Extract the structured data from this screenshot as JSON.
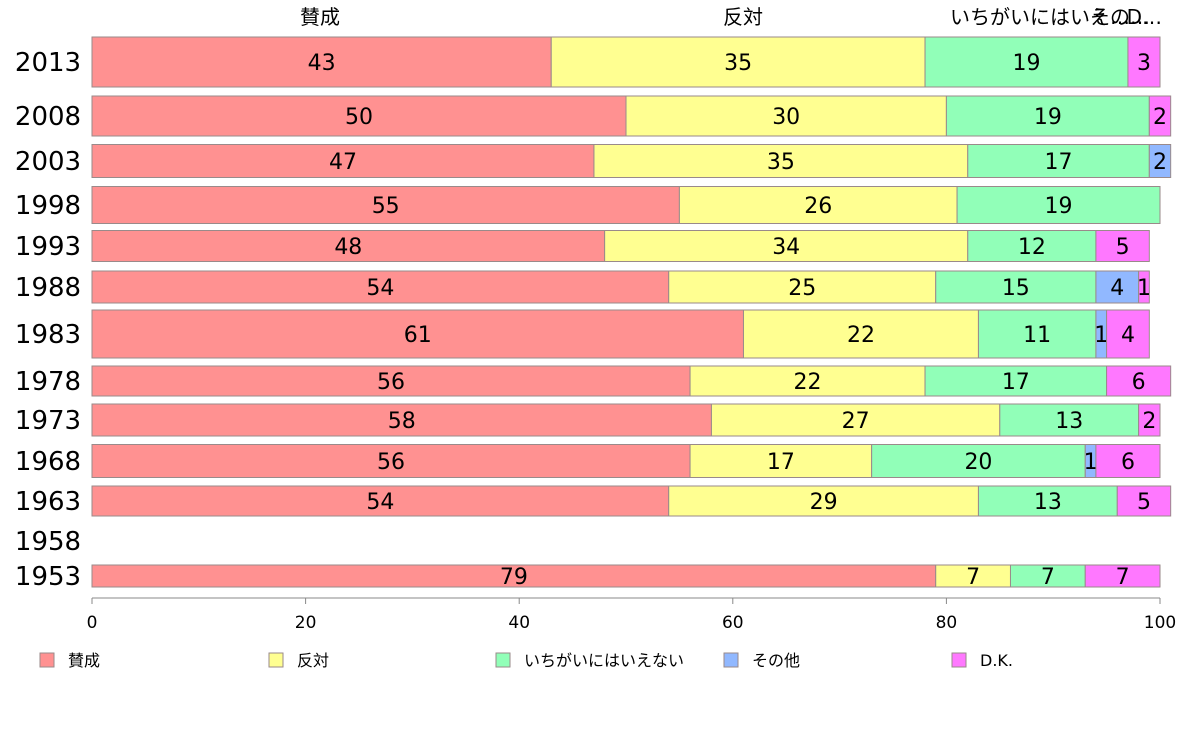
{
  "chart_data": {
    "type": "bar",
    "orientation": "horizontal",
    "stacked": true,
    "categories": [
      "2013",
      "2008",
      "2003",
      "1998",
      "1993",
      "1988",
      "1983",
      "1978",
      "1973",
      "1968",
      "1963",
      "1958",
      "1953"
    ],
    "series": [
      {
        "name": "賛成",
        "color": "#ff9191",
        "values": [
          43,
          50,
          47,
          55,
          48,
          54,
          61,
          56,
          58,
          56,
          54,
          null,
          79
        ]
      },
      {
        "name": "反対",
        "color": "#ffff91",
        "values": [
          35,
          30,
          35,
          26,
          34,
          25,
          22,
          22,
          27,
          17,
          29,
          null,
          7
        ]
      },
      {
        "name": "いちがいにはいえない",
        "color": "#91ffb8",
        "values": [
          19,
          19,
          17,
          19,
          12,
          15,
          11,
          17,
          13,
          20,
          13,
          null,
          7
        ]
      },
      {
        "name": "その他",
        "color": "#91b8ff",
        "values": [
          0,
          0,
          2,
          0,
          0,
          4,
          1,
          0,
          0,
          1,
          0,
          null,
          0
        ]
      },
      {
        "name": "D.K.",
        "color": "#ff78ff",
        "values": [
          3,
          2,
          0,
          0,
          5,
          1,
          4,
          6,
          2,
          6,
          5,
          null,
          7
        ]
      }
    ],
    "segment_labels": [
      [
        "43",
        "35",
        "19",
        "",
        "3"
      ],
      [
        "50",
        "30",
        "19",
        "",
        "2"
      ],
      [
        "47",
        "35",
        "17",
        "2",
        ""
      ],
      [
        "55",
        "26",
        "19",
        "",
        ""
      ],
      [
        "48",
        "34",
        "12",
        "",
        "5"
      ],
      [
        "54",
        "25",
        "15",
        "4",
        "1"
      ],
      [
        "61",
        "22",
        "11",
        "1",
        "4"
      ],
      [
        "56",
        "22",
        "17",
        "",
        "6"
      ],
      [
        "58",
        "27",
        "13",
        "",
        "2"
      ],
      [
        "56",
        "17",
        "20",
        "1",
        "6"
      ],
      [
        "54",
        "29",
        "13",
        "",
        "5"
      ],
      [
        "",
        "",
        "",
        "",
        ""
      ],
      [
        "79",
        "7",
        "7",
        "",
        "7"
      ]
    ],
    "column_headers": [
      "賛成",
      "反対",
      "いちがいにはいえない",
      "その他",
      "D.K."
    ],
    "column_header_display": [
      "賛成",
      "反対",
      "いちがいにはいえ…",
      "その…",
      "D…"
    ],
    "x_ticks": [
      "0",
      "20",
      "40",
      "60",
      "80",
      "100"
    ],
    "xlim": [
      0,
      100
    ],
    "title": "",
    "xlabel": "",
    "ylabel": "",
    "grid": false,
    "legend_position": "bottom"
  }
}
